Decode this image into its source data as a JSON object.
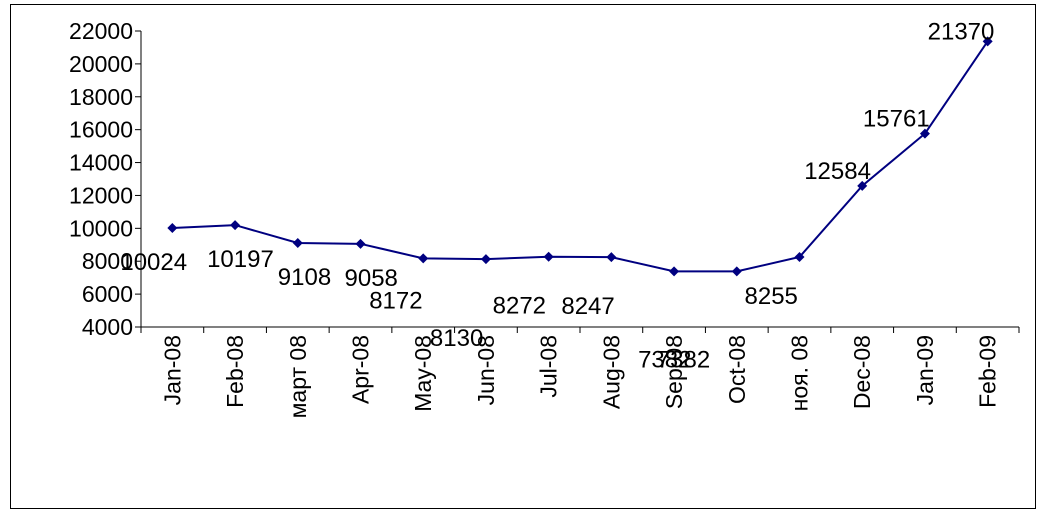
{
  "chart_data": {
    "type": "line",
    "categories": [
      "Jan-08",
      "Feb-08",
      "март 08",
      "Apr-08",
      "May-08",
      "Jun-08",
      "Jul-08",
      "Aug-08",
      "Sep-08",
      "Oct-08",
      "ноя. 08",
      "Dec-08",
      "Jan-09",
      "Feb-09"
    ],
    "series": [
      {
        "values": [
          10024,
          10197,
          9108,
          9058,
          8172,
          8130,
          8272,
          8247,
          7382,
          7382,
          8255,
          12584,
          15761,
          21370
        ],
        "color": "#000080"
      }
    ],
    "data_labels": [
      "10024",
      "10197",
      "9108",
      "9058",
      "8172",
      "8130",
      "8272",
      "8247",
      "7382",
      "7382",
      "8255",
      "12584",
      "15761",
      "21370"
    ],
    "y_ticks": [
      "4000",
      "6000",
      "8000",
      "10000",
      "12000",
      "14000",
      "16000",
      "18000",
      "20000",
      "22000"
    ],
    "ylim": [
      4000,
      22000
    ],
    "grid": false,
    "legend": "none",
    "title": "",
    "xlabel": "",
    "ylabel": ""
  }
}
